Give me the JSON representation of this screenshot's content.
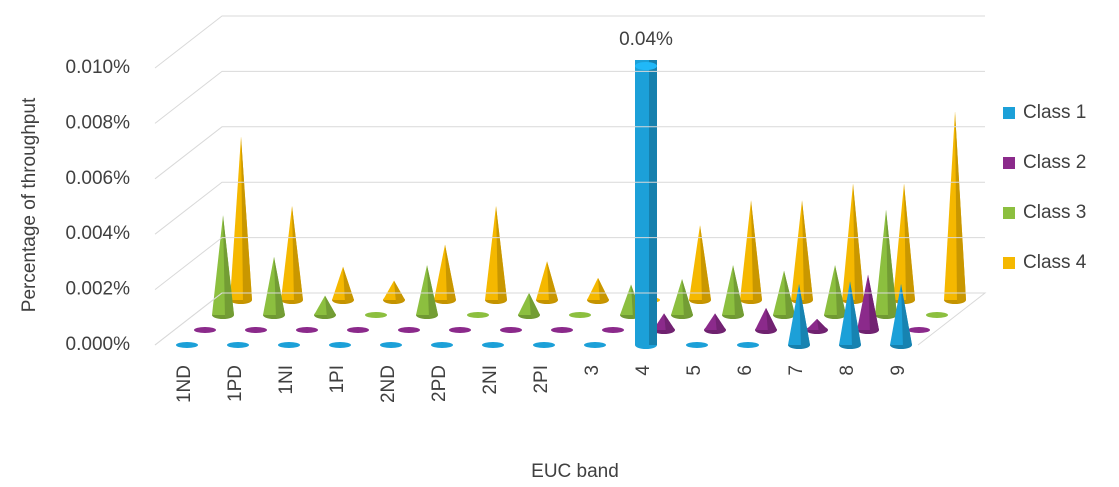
{
  "chart_data": {
    "type": "cone3d",
    "y_label": "Percentage of throughput",
    "x_label": "EUC band",
    "categories": [
      "1ND",
      "1PD",
      "1NI",
      "1PI",
      "2ND",
      "2PD",
      "2NI",
      "2PI",
      "3",
      "4",
      "5",
      "6",
      "7",
      "8",
      "9"
    ],
    "series": [
      {
        "name": "Class 1",
        "color": "#1ca0d8",
        "values": [
          0,
          0,
          0,
          0,
          0,
          0,
          0,
          0,
          0,
          0.04,
          0,
          0,
          0.0022,
          0.0023,
          0.0022
        ],
        "value_labels": [
          null,
          null,
          null,
          null,
          null,
          null,
          null,
          null,
          null,
          "0.04%",
          null,
          null,
          null,
          null,
          null
        ]
      },
      {
        "name": "Class 2",
        "color": "#8b2a8b",
        "values": [
          0,
          0,
          0,
          0,
          0,
          0,
          0,
          0,
          0,
          0.0006,
          0.0006,
          0.0008,
          0.0004,
          0.002,
          0
        ]
      },
      {
        "name": "Class 3",
        "color": "#8cbf3f",
        "values": [
          0.0036,
          0.0021,
          0.0007,
          0,
          0.0018,
          0,
          0.0008,
          0,
          0.0011,
          0.0013,
          0.0018,
          0.0016,
          0.0018,
          0.0038,
          0
        ]
      },
      {
        "name": "Class 4",
        "color": "#f5b800",
        "values": [
          0.0059,
          0.0034,
          0.0012,
          0.0007,
          0.002,
          0.0034,
          0.0014,
          0.0008,
          0,
          0.0027,
          0.0036,
          0.0036,
          0.0042,
          0.0042,
          0.0068
        ]
      }
    ],
    "ylim": [
      0,
      0.01
    ],
    "yticks": [
      {
        "value": 0,
        "label": "0.000%"
      },
      {
        "value": 0.002,
        "label": "0.002%"
      },
      {
        "value": 0.004,
        "label": "0.004%"
      },
      {
        "value": 0.006,
        "label": "0.006%"
      },
      {
        "value": 0.008,
        "label": "0.008%"
      },
      {
        "value": 0.01,
        "label": "0.010%"
      }
    ],
    "grid": true,
    "legend": "right"
  }
}
